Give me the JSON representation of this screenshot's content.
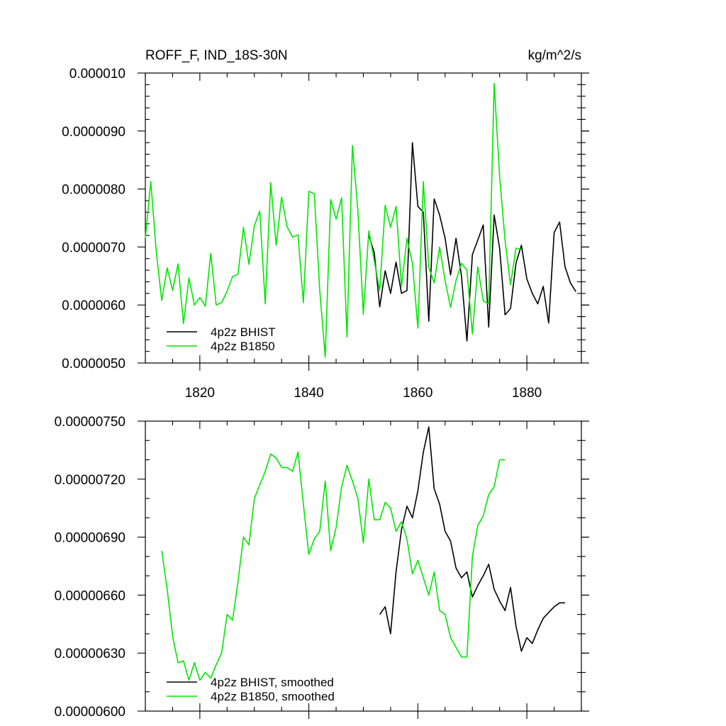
{
  "colors": {
    "bhist": "#000000",
    "b1850": "#00e600",
    "axis": "#000000",
    "background": "#ffffff"
  },
  "chart_data": [
    {
      "type": "line",
      "title": "ROFF_F, IND_18S-30N",
      "units": "kg/m^2/s",
      "xlim": [
        1810,
        1890
      ],
      "ylim": [
        5e-06,
        1e-05
      ],
      "x_ticks": [
        1820,
        1840,
        1860,
        1880
      ],
      "x_tick_labels": [
        "1820",
        "1840",
        "1860",
        "1880"
      ],
      "y_ticks": [
        5e-06,
        6e-06,
        7e-06,
        8e-06,
        9e-06,
        1e-05
      ],
      "y_tick_labels": [
        "0.0000050",
        "0.0000060",
        "0.0000070",
        "0.0000080",
        "0.0000090",
        "0.000010"
      ],
      "legend_position": "bottom-left",
      "series": [
        {
          "name": "4p2z BHIST",
          "color": "#000000",
          "x": [
            1851,
            1852,
            1853,
            1854,
            1855,
            1856,
            1857,
            1858,
            1859,
            1860,
            1861,
            1862,
            1863,
            1864,
            1865,
            1866,
            1867,
            1868,
            1869,
            1870,
            1871,
            1872,
            1873,
            1874,
            1875,
            1876,
            1877,
            1878,
            1879,
            1880,
            1881,
            1882,
            1883,
            1884,
            1885,
            1886,
            1887,
            1888,
            1889
          ],
          "values": [
            7.2e-06,
            6.9e-06,
            5.97e-06,
            6.59e-06,
            6.2e-06,
            6.74e-06,
            6.2e-06,
            6.25e-06,
            8.8e-06,
            7.7e-06,
            7.6e-06,
            5.72e-06,
            7.83e-06,
            7.55e-06,
            7.15e-06,
            6.52e-06,
            7.15e-06,
            6.5e-06,
            5.38e-06,
            6.87e-06,
            7.12e-06,
            7.38e-06,
            5.62e-06,
            7.55e-06,
            6.98e-06,
            5.83e-06,
            5.94e-06,
            6.72e-06,
            7.03e-06,
            6.45e-06,
            6.2e-06,
            6.02e-06,
            6.32e-06,
            5.69e-06,
            7.25e-06,
            7.43e-06,
            6.66e-06,
            6.38e-06,
            6.23e-06
          ]
        },
        {
          "name": "4p2z B1850",
          "color": "#00e600",
          "x": [
            1810,
            1811,
            1812,
            1813,
            1814,
            1815,
            1816,
            1817,
            1818,
            1819,
            1820,
            1821,
            1822,
            1823,
            1824,
            1825,
            1826,
            1827,
            1828,
            1829,
            1830,
            1831,
            1832,
            1833,
            1834,
            1835,
            1836,
            1837,
            1838,
            1839,
            1840,
            1841,
            1842,
            1843,
            1844,
            1845,
            1846,
            1847,
            1848,
            1849,
            1850,
            1851,
            1852,
            1853,
            1854,
            1855,
            1856,
            1857,
            1858,
            1859,
            1860,
            1861,
            1862,
            1863,
            1864,
            1865,
            1866,
            1867,
            1868,
            1869,
            1870,
            1871,
            1872,
            1873,
            1874,
            1875,
            1876,
            1877,
            1878,
            1879
          ],
          "values": [
            7.15e-06,
            8.13e-06,
            6.92e-06,
            6.08e-06,
            6.64e-06,
            6.25e-06,
            6.71e-06,
            5.68e-06,
            6.47e-06,
            6e-06,
            6.13e-06,
            5.98e-06,
            6.89e-06,
            6e-06,
            6.04e-06,
            6.24e-06,
            6.49e-06,
            6.53e-06,
            7.34e-06,
            6.7e-06,
            7.37e-06,
            7.62e-06,
            6.02e-06,
            8.11e-06,
            7.03e-06,
            7.86e-06,
            7.35e-06,
            7.17e-06,
            7.21e-06,
            6.04e-06,
            7.96e-06,
            7.92e-06,
            6.25e-06,
            5.1e-06,
            7.82e-06,
            7.48e-06,
            7.85e-06,
            5.45e-06,
            8.75e-06,
            7.62e-06,
            5.84e-06,
            7.28e-06,
            6.76e-06,
            6.25e-06,
            7.72e-06,
            7.34e-06,
            7.7e-06,
            6.32e-06,
            7.15e-06,
            6.72e-06,
            5.6e-06,
            8.13e-06,
            6.65e-06,
            6.38e-06,
            7e-06,
            6.42e-06,
            5.96e-06,
            6.42e-06,
            6.72e-06,
            6.6e-06,
            5.5e-06,
            6.66e-06,
            6.07e-06,
            6.02e-06,
            9.82e-06,
            8.22e-06,
            7.11e-06,
            6.35e-06,
            6.98e-06,
            6.96e-06
          ]
        }
      ]
    },
    {
      "type": "line",
      "title": "",
      "xlim": [
        1810,
        1890
      ],
      "ylim": [
        6e-06,
        7.5e-06
      ],
      "x_ticks": [
        1820,
        1840,
        1860,
        1880
      ],
      "y_ticks": [
        6e-06,
        6.3e-06,
        6.6e-06,
        6.9e-06,
        7.2e-06,
        7.5e-06
      ],
      "y_tick_labels": [
        "0.00000600",
        "0.00000630",
        "0.00000660",
        "0.00000690",
        "0.00000720",
        "0.00000750"
      ],
      "legend_position": "bottom-left",
      "series": [
        {
          "name": "4p2z BHIST, smoothed",
          "color": "#000000",
          "x": [
            1853,
            1854,
            1855,
            1856,
            1857,
            1858,
            1859,
            1860,
            1861,
            1862,
            1863,
            1864,
            1865,
            1866,
            1867,
            1868,
            1869,
            1870,
            1871,
            1872,
            1873,
            1874,
            1875,
            1876,
            1877,
            1878,
            1879,
            1880,
            1881,
            1882,
            1883,
            1884,
            1885,
            1886,
            1887
          ],
          "values": [
            6.5e-06,
            6.54e-06,
            6.4e-06,
            6.72e-06,
            6.94e-06,
            7.06e-06,
            7e-06,
            7.14e-06,
            7.34e-06,
            7.47e-06,
            7.15e-06,
            7.07e-06,
            6.93e-06,
            6.88e-06,
            6.74e-06,
            6.69e-06,
            6.72e-06,
            6.59e-06,
            6.65e-06,
            6.7e-06,
            6.76e-06,
            6.63e-06,
            6.57e-06,
            6.52e-06,
            6.64e-06,
            6.44e-06,
            6.31e-06,
            6.38e-06,
            6.35e-06,
            6.42e-06,
            6.48e-06,
            6.51e-06,
            6.54e-06,
            6.56e-06,
            6.56e-06
          ]
        },
        {
          "name": "4p2z B1850, smoothed",
          "color": "#00e600",
          "x": [
            1813,
            1814,
            1815,
            1816,
            1817,
            1818,
            1819,
            1820,
            1821,
            1822,
            1823,
            1824,
            1825,
            1826,
            1827,
            1828,
            1829,
            1830,
            1831,
            1832,
            1833,
            1834,
            1835,
            1836,
            1837,
            1838,
            1839,
            1840,
            1841,
            1842,
            1843,
            1844,
            1845,
            1846,
            1847,
            1848,
            1849,
            1850,
            1851,
            1852,
            1853,
            1854,
            1855,
            1856,
            1857,
            1858,
            1859,
            1860,
            1861,
            1862,
            1863,
            1864,
            1865,
            1866,
            1867,
            1868,
            1869,
            1870,
            1871,
            1872,
            1873,
            1874,
            1875,
            1876
          ],
          "values": [
            6.83e-06,
            6.63e-06,
            6.39e-06,
            6.25e-06,
            6.26e-06,
            6.16e-06,
            6.25e-06,
            6.16e-06,
            6.2e-06,
            6.17e-06,
            6.24e-06,
            6.3e-06,
            6.5e-06,
            6.47e-06,
            6.67e-06,
            6.9e-06,
            6.86e-06,
            7.1e-06,
            7.17e-06,
            7.24e-06,
            7.33e-06,
            7.31e-06,
            7.26e-06,
            7.26e-06,
            7.24e-06,
            7.34e-06,
            7.07e-06,
            6.81e-06,
            6.89e-06,
            6.93e-06,
            7.19e-06,
            6.83e-06,
            6.95e-06,
            7.16e-06,
            7.27e-06,
            7.19e-06,
            7.1e-06,
            6.87e-06,
            7.2e-06,
            6.99e-06,
            6.99e-06,
            7.08e-06,
            7.05e-06,
            6.93e-06,
            6.98e-06,
            6.89e-06,
            6.71e-06,
            6.78e-06,
            6.69e-06,
            6.6e-06,
            6.72e-06,
            6.52e-06,
            6.5e-06,
            6.38e-06,
            6.33e-06,
            6.28e-06,
            6.28e-06,
            6.8e-06,
            6.96e-06,
            7.01e-06,
            7.12e-06,
            7.16e-06,
            7.3e-06,
            7.3e-06
          ]
        }
      ]
    }
  ]
}
